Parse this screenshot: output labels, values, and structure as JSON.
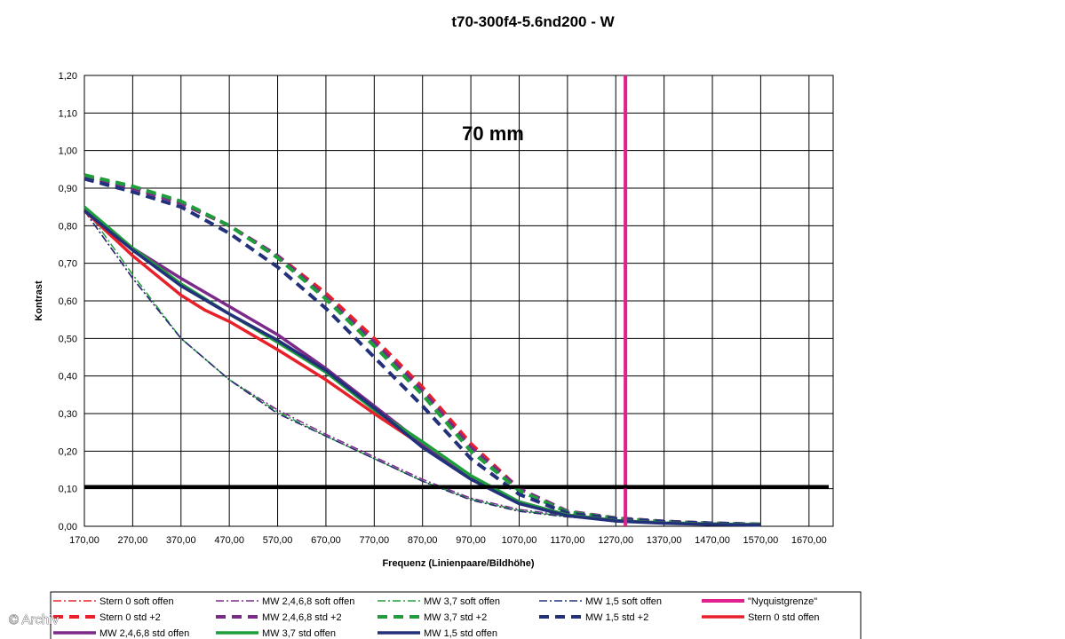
{
  "chart_data": {
    "type": "line",
    "title": "t70-300f4-5.6nd200 - W",
    "xlabel": "Frequenz (Linienpaare/Bildhöhe)",
    "ylabel": "Kontrast",
    "annotation": "70 mm",
    "xlim": [
      170,
      1720
    ],
    "ylim": [
      0,
      1.2
    ],
    "x_ticks": [
      "170,00",
      "270,00",
      "370,00",
      "470,00",
      "570,00",
      "670,00",
      "770,00",
      "870,00",
      "970,00",
      "1070,00",
      "1170,00",
      "1270,00",
      "1370,00",
      "1470,00",
      "1570,00",
      "1670,00"
    ],
    "y_ticks": [
      "0,00",
      "0,10",
      "0,20",
      "0,30",
      "0,40",
      "0,50",
      "0,60",
      "0,70",
      "0,80",
      "0,90",
      "1,00",
      "1,10",
      "1,20"
    ],
    "grid": true,
    "threshold_line": {
      "y": 0.105,
      "color": "#000000"
    },
    "series": [
      {
        "name": "Stern 0 soft offen",
        "color": "#e8202a",
        "style": "dashdot",
        "width": 1.5,
        "x": [
          170,
          270,
          370,
          470,
          570,
          670,
          770,
          870,
          970,
          1070,
          1170,
          1270,
          1370,
          1470,
          1570
        ],
        "y": [
          0.84,
          0.66,
          0.5,
          0.39,
          0.3,
          0.24,
          0.18,
          0.12,
          0.07,
          0.04,
          0.025,
          0.015,
          0.01,
          0.007,
          0.005
        ]
      },
      {
        "name": "MW 2,4,6,8 soft offen",
        "color": "#7b2a8a",
        "style": "dashdot",
        "width": 1.5,
        "x": [
          170,
          270,
          370,
          470,
          570,
          670,
          770,
          870,
          970,
          1070,
          1170,
          1270,
          1370,
          1470,
          1570
        ],
        "y": [
          0.84,
          0.66,
          0.5,
          0.39,
          0.31,
          0.245,
          0.185,
          0.125,
          0.075,
          0.045,
          0.028,
          0.017,
          0.011,
          0.008,
          0.006
        ]
      },
      {
        "name": "MW 3,7 soft offen",
        "color": "#1e9e3a",
        "style": "dashdot",
        "width": 1.5,
        "x": [
          170,
          270,
          370,
          470,
          570,
          670,
          770,
          870,
          970,
          1070,
          1170,
          1270,
          1370,
          1470,
          1570
        ],
        "y": [
          0.85,
          0.67,
          0.5,
          0.39,
          0.305,
          0.24,
          0.18,
          0.12,
          0.072,
          0.042,
          0.026,
          0.016,
          0.011,
          0.008,
          0.005
        ]
      },
      {
        "name": "MW 1,5 soft offen",
        "color": "#23307a",
        "style": "dashdot",
        "width": 1.5,
        "x": [
          170,
          270,
          370,
          470,
          570,
          670,
          770,
          870,
          970,
          1070,
          1170,
          1270,
          1370,
          1470,
          1570
        ],
        "y": [
          0.84,
          0.66,
          0.5,
          0.39,
          0.3,
          0.24,
          0.18,
          0.12,
          0.07,
          0.04,
          0.025,
          0.015,
          0.01,
          0.007,
          0.005
        ]
      },
      {
        "name": "\"Nyquistgrenze\"",
        "color": "#e0208c",
        "style": "vline",
        "width": 4,
        "x": 1290
      },
      {
        "name": "Stern 0 std +2",
        "color": "#e8202a",
        "style": "dash",
        "width": 4,
        "x": [
          170,
          270,
          370,
          470,
          570,
          670,
          770,
          870,
          970,
          1070,
          1170,
          1270,
          1370,
          1470,
          1570
        ],
        "y": [
          0.93,
          0.9,
          0.86,
          0.8,
          0.72,
          0.62,
          0.5,
          0.37,
          0.22,
          0.1,
          0.04,
          0.022,
          0.013,
          0.008,
          0.005
        ]
      },
      {
        "name": "MW 2,4,6,8 std +2",
        "color": "#7b2a8a",
        "style": "dash",
        "width": 4,
        "x": [
          170,
          270,
          370,
          470,
          570,
          670,
          770,
          870,
          970,
          1070,
          1170,
          1270,
          1370,
          1470,
          1570
        ],
        "y": [
          0.93,
          0.9,
          0.86,
          0.8,
          0.72,
          0.61,
          0.49,
          0.36,
          0.21,
          0.1,
          0.04,
          0.022,
          0.013,
          0.008,
          0.005
        ]
      },
      {
        "name": "MW 3,7 std +2",
        "color": "#1e9e3a",
        "style": "dash",
        "width": 4,
        "x": [
          170,
          270,
          370,
          470,
          570,
          670,
          770,
          870,
          970,
          1070,
          1170,
          1270,
          1370,
          1470,
          1570
        ],
        "y": [
          0.935,
          0.905,
          0.865,
          0.8,
          0.715,
          0.605,
          0.48,
          0.35,
          0.2,
          0.095,
          0.038,
          0.021,
          0.012,
          0.008,
          0.005
        ]
      },
      {
        "name": "MW 1,5 std +2",
        "color": "#23307a",
        "style": "dash",
        "width": 4,
        "x": [
          170,
          270,
          370,
          470,
          570,
          670,
          770,
          870,
          970,
          1070,
          1170,
          1270,
          1370,
          1470,
          1570
        ],
        "y": [
          0.925,
          0.89,
          0.85,
          0.78,
          0.69,
          0.58,
          0.45,
          0.32,
          0.18,
          0.085,
          0.035,
          0.02,
          0.012,
          0.008,
          0.005
        ]
      },
      {
        "name": "Stern 0 std offen",
        "color": "#e8202a",
        "style": "solid",
        "width": 3.5,
        "x": [
          170,
          270,
          370,
          420,
          470,
          570,
          670,
          770,
          870,
          970,
          1070,
          1170,
          1270,
          1370,
          1470,
          1570
        ],
        "y": [
          0.84,
          0.72,
          0.615,
          0.575,
          0.545,
          0.47,
          0.39,
          0.3,
          0.215,
          0.13,
          0.065,
          0.03,
          0.015,
          0.009,
          0.006,
          0.004
        ]
      },
      {
        "name": "MW 2,4,6,8 std offen",
        "color": "#7b2a8a",
        "style": "solid",
        "width": 3.5,
        "x": [
          170,
          270,
          370,
          470,
          570,
          670,
          770,
          870,
          970,
          1070,
          1170,
          1270,
          1370,
          1470,
          1570
        ],
        "y": [
          0.84,
          0.74,
          0.66,
          0.585,
          0.51,
          0.42,
          0.32,
          0.22,
          0.13,
          0.065,
          0.03,
          0.015,
          0.009,
          0.006,
          0.004
        ]
      },
      {
        "name": "MW 3,7 std offen",
        "color": "#1e9e3a",
        "style": "solid",
        "width": 3.5,
        "x": [
          170,
          270,
          370,
          470,
          570,
          670,
          770,
          870,
          970,
          1070,
          1170,
          1270,
          1370,
          1470,
          1570
        ],
        "y": [
          0.85,
          0.74,
          0.645,
          0.565,
          0.49,
          0.41,
          0.31,
          0.225,
          0.135,
          0.065,
          0.03,
          0.015,
          0.009,
          0.006,
          0.004
        ]
      },
      {
        "name": "MW 1,5 std offen",
        "color": "#23307a",
        "style": "solid",
        "width": 3.5,
        "x": [
          170,
          270,
          370,
          470,
          570,
          670,
          770,
          870,
          970,
          1070,
          1170,
          1270,
          1370,
          1470,
          1570
        ],
        "y": [
          0.84,
          0.735,
          0.64,
          0.565,
          0.495,
          0.415,
          0.315,
          0.21,
          0.125,
          0.06,
          0.028,
          0.014,
          0.008,
          0.005,
          0.003
        ]
      }
    ]
  },
  "watermark": "© Archiv"
}
